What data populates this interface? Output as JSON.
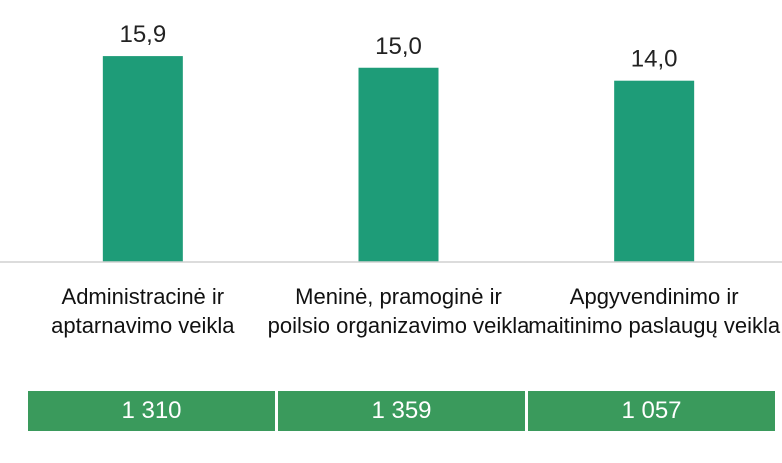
{
  "chart_data": {
    "type": "bar",
    "categories": [
      "Administracinė ir aptarnavimo veikla",
      "Meninė, pramoginė ir poilsio organizavimo veikla",
      "Apgyvendinimo ir maitinimo paslaugų veikla"
    ],
    "values": [
      15.9,
      15.0,
      14.0
    ],
    "value_labels": [
      "15,9",
      "15,0",
      "14,0"
    ],
    "color": "#1e9c78",
    "ylim": [
      0,
      20
    ]
  },
  "table": {
    "rows": [
      [
        "1 310",
        "1 359",
        "1 057"
      ]
    ],
    "color": "#3a9a5c"
  }
}
